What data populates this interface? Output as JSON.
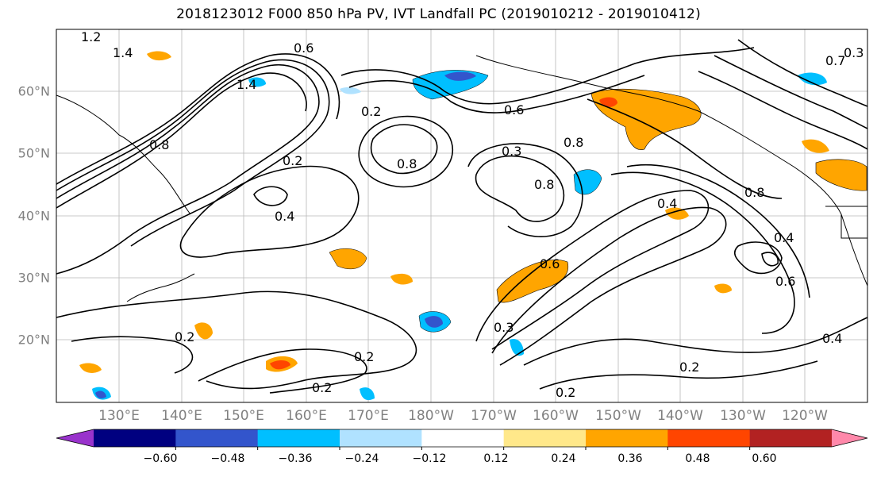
{
  "title": "2018123012 F000 850 hPa PV, IVT Landfall PC (2019010212 - 2019010412)",
  "map": {
    "lat_labels": [
      "60°N",
      "50°N",
      "40°N",
      "30°N",
      "20°N"
    ],
    "lon_labels": [
      "130°E",
      "140°E",
      "150°E",
      "160°E",
      "170°E",
      "180°W",
      "170°W",
      "160°W",
      "150°W",
      "140°W",
      "130°W",
      "120°W"
    ],
    "contour_labels": [
      "1.2",
      "1.4",
      "0.6",
      "1.4",
      "0.2",
      "0.8",
      "0.2",
      "0.4",
      "0.8",
      "0.6",
      "0.3",
      "0.8",
      "0.8",
      "0.4",
      "0.8",
      "0.2",
      "0.3",
      "0.6",
      "0.2",
      "0.2",
      "0.2",
      "0.2",
      "0.4",
      "0.6",
      "0.4",
      "0.7",
      "0.3"
    ]
  },
  "colorbar": {
    "colors": [
      "#9933cc",
      "#000080",
      "#3355cc",
      "#00bfff",
      "#b0e2ff",
      "#ffffff",
      "#ffe88a",
      "#ffa500",
      "#ff4500",
      "#b22222",
      "#ff88aa"
    ],
    "tick_labels": [
      "−0.60",
      "−0.48",
      "−0.36",
      "−0.24",
      "−0.12",
      "0.12",
      "0.24",
      "0.36",
      "0.48",
      "0.60"
    ]
  }
}
